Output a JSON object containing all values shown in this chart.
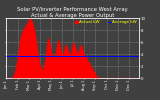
{
  "title": "Solar PV/Inverter Performance West Array Actual & Average Power Output",
  "title_fontsize": 3.8,
  "bg_color": "#404040",
  "plot_bg_color": "#404040",
  "grid_color": "#ffffff",
  "bar_color": "#ff0000",
  "avg_line_color": "#0000ff",
  "avg_line_value": 0.36,
  "ylim": [
    0,
    1.0
  ],
  "num_points": 200,
  "data": [
    0.0,
    0.0,
    0.0,
    0.0,
    0.0,
    0.0,
    0.0,
    0.0,
    0.01,
    0.02,
    0.04,
    0.06,
    0.09,
    0.13,
    0.18,
    0.24,
    0.3,
    0.38,
    0.46,
    0.54,
    0.62,
    0.68,
    0.72,
    0.75,
    0.78,
    0.8,
    0.82,
    0.84,
    0.86,
    0.88,
    0.9,
    0.92,
    0.94,
    0.96,
    0.98,
    1.0,
    0.99,
    0.98,
    0.96,
    0.93,
    0.9,
    0.86,
    0.81,
    0.75,
    0.68,
    0.6,
    0.52,
    0.44,
    0.37,
    0.3,
    0.25,
    0.21,
    0.18,
    0.16,
    0.15,
    0.16,
    0.2,
    0.26,
    0.33,
    0.42,
    0.52,
    0.6,
    0.65,
    0.67,
    0.65,
    0.6,
    0.54,
    0.48,
    0.43,
    0.38,
    0.35,
    0.33,
    0.35,
    0.4,
    0.46,
    0.52,
    0.58,
    0.62,
    0.63,
    0.62,
    0.58,
    0.52,
    0.46,
    0.42,
    0.4,
    0.42,
    0.46,
    0.5,
    0.54,
    0.56,
    0.55,
    0.52,
    0.48,
    0.45,
    0.42,
    0.4,
    0.42,
    0.45,
    0.5,
    0.55,
    0.58,
    0.6,
    0.58,
    0.54,
    0.5,
    0.46,
    0.43,
    0.42,
    0.44,
    0.48,
    0.52,
    0.55,
    0.56,
    0.54,
    0.5,
    0.46,
    0.42,
    0.4,
    0.38,
    0.36,
    0.34,
    0.32,
    0.3,
    0.28,
    0.26,
    0.24,
    0.22,
    0.2,
    0.18,
    0.16,
    0.14,
    0.12,
    0.1,
    0.08,
    0.06,
    0.04,
    0.02,
    0.01,
    0.0,
    0.0,
    0.0,
    0.0,
    0.0,
    0.0,
    0.0,
    0.0,
    0.0,
    0.0,
    0.0,
    0.0,
    0.0,
    0.0,
    0.0,
    0.0,
    0.0,
    0.0,
    0.0,
    0.0,
    0.0,
    0.0,
    0.0,
    0.0,
    0.0,
    0.0,
    0.0,
    0.0,
    0.0,
    0.0,
    0.0,
    0.0,
    0.0,
    0.0,
    0.0,
    0.0,
    0.0,
    0.0,
    0.0,
    0.0,
    0.0,
    0.0,
    0.0,
    0.0,
    0.0,
    0.0,
    0.0,
    0.0,
    0.0,
    0.0,
    0.0,
    0.0,
    0.0,
    0.0,
    0.0,
    0.0,
    0.0,
    0.0,
    0.0,
    0.0,
    0.0,
    0.0
  ],
  "xtick_labels": [
    "Jan 1",
    "",
    "",
    "",
    "",
    "",
    "",
    "",
    "",
    "",
    "",
    "",
    "",
    "",
    "Feb 1",
    "",
    "",
    "",
    "",
    "",
    "",
    "",
    "",
    "",
    "",
    "",
    "",
    "",
    "Mar 1",
    "",
    "",
    "",
    "",
    "",
    "",
    "",
    "",
    "",
    "",
    "",
    "",
    "",
    "Apr 1",
    "",
    "",
    "",
    "",
    "",
    "",
    "",
    "",
    "",
    "",
    "",
    "",
    "",
    "May 1",
    "",
    "",
    "",
    "",
    "",
    "",
    "",
    "",
    "",
    "",
    "",
    "",
    "",
    "Jun 1",
    "",
    "",
    "",
    "",
    "",
    "",
    "",
    "",
    "",
    "",
    "",
    "",
    "",
    "Jul 1",
    "",
    "",
    "",
    "",
    "",
    "",
    "",
    "",
    "",
    "",
    "",
    "",
    "",
    "Aug 1",
    "",
    "",
    "",
    "",
    "",
    "",
    "",
    "",
    "",
    "",
    "",
    "",
    "",
    "Sep 1",
    "",
    "",
    "",
    "",
    "",
    "",
    "",
    "",
    "",
    "",
    "",
    "",
    "",
    "Oct 1",
    "",
    "",
    "",
    "",
    "",
    "",
    "",
    "",
    "",
    "",
    "",
    "",
    "",
    "Nov 1",
    "",
    "",
    "",
    "",
    "",
    "",
    "",
    "",
    "",
    "",
    "",
    "",
    "",
    "Dec 1",
    "",
    "",
    "",
    "",
    "",
    "",
    "",
    "",
    "",
    "",
    "",
    "",
    ""
  ],
  "legend_actual": "Actual kW",
  "legend_avg": "Average kW",
  "legend_fontsize": 3.0,
  "right_axis_ticks": [
    0.0,
    0.2,
    0.4,
    0.6,
    0.8,
    1.0
  ],
  "right_axis_labels": [
    "0",
    "2",
    "4",
    "6",
    "8",
    "10"
  ],
  "title_color": "#ffffff",
  "tick_color": "#ffffff",
  "label_color": "#ffff00"
}
